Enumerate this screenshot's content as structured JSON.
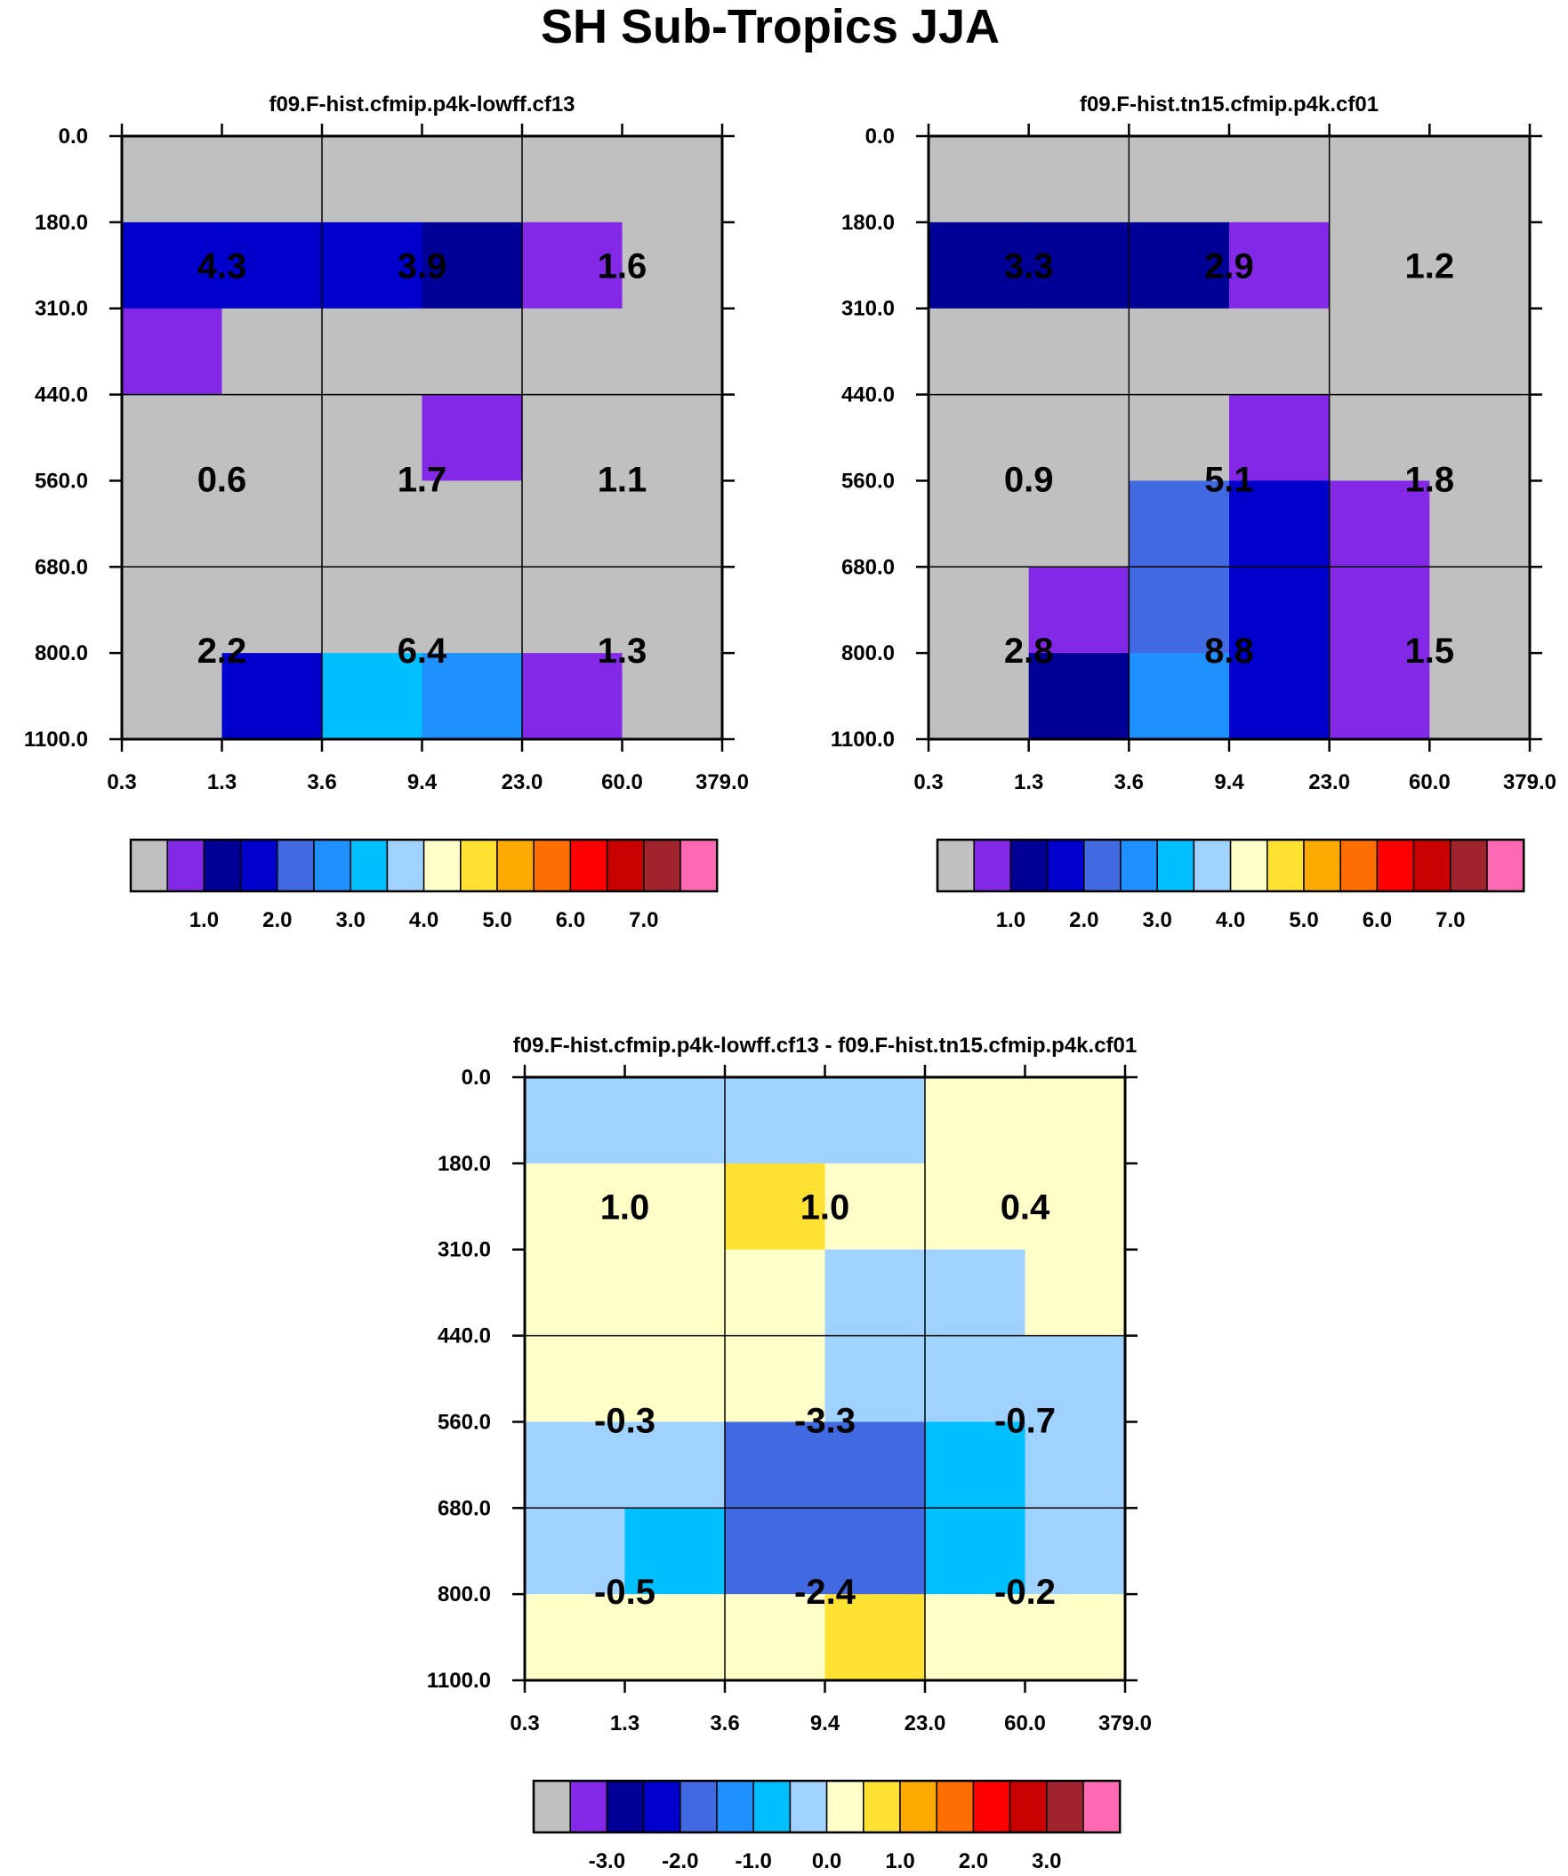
{
  "figure_title": "SH Sub-Tropics JJA",
  "chart_data": [
    {
      "type": "heatmap",
      "title": "f09.F-hist.cfmip.p4k-lowff.cf13",
      "x_tick_labels": [
        "0.3",
        "1.3",
        "3.6",
        "9.4",
        "23.0",
        "60.0",
        "379.0"
      ],
      "y_tick_labels": [
        "0.0",
        "180.0",
        "310.0",
        "440.0",
        "560.0",
        "680.0",
        "800.0",
        "1100.0"
      ],
      "cell_classes": [
        [
          0,
          0,
          0,
          0,
          0,
          0
        ],
        [
          3,
          3,
          3,
          2,
          1,
          0
        ],
        [
          1,
          0,
          0,
          0,
          0,
          0
        ],
        [
          0,
          0,
          0,
          1,
          0,
          0
        ],
        [
          0,
          0,
          0,
          0,
          0,
          0
        ],
        [
          0,
          0,
          0,
          0,
          0,
          0
        ],
        [
          0,
          3,
          6,
          5,
          1,
          0
        ]
      ],
      "summary_values": [
        [
          "4.3",
          "3.9",
          "1.6"
        ],
        [
          "0.6",
          "1.7",
          "1.1"
        ],
        [
          "2.2",
          "6.4",
          "1.3"
        ]
      ],
      "colorbar": {
        "colors": [
          "#c0c0c0",
          "#8228e6",
          "#000096",
          "#0000cd",
          "#4169e1",
          "#1e90ff",
          "#00bfff",
          "#a0d2ff",
          "#ffffc8",
          "#ffe132",
          "#ffaa00",
          "#ff6e00",
          "#ff0000",
          "#c80000",
          "#a0232d",
          "#ff69b4"
        ],
        "tick_labels": [
          "1.0",
          "2.0",
          "3.0",
          "4.0",
          "5.0",
          "6.0",
          "7.0"
        ]
      }
    },
    {
      "type": "heatmap",
      "title": "f09.F-hist.tn15.cfmip.p4k.cf01",
      "x_tick_labels": [
        "0.3",
        "1.3",
        "3.6",
        "9.4",
        "23.0",
        "60.0",
        "379.0"
      ],
      "y_tick_labels": [
        "0.0",
        "180.0",
        "310.0",
        "440.0",
        "560.0",
        "680.0",
        "800.0",
        "1100.0"
      ],
      "cell_classes": [
        [
          0,
          0,
          0,
          0,
          0,
          0
        ],
        [
          2,
          2,
          2,
          1,
          0,
          0
        ],
        [
          0,
          0,
          0,
          0,
          0,
          0
        ],
        [
          0,
          0,
          0,
          1,
          0,
          0
        ],
        [
          0,
          0,
          4,
          3,
          1,
          0
        ],
        [
          0,
          1,
          4,
          3,
          1,
          0
        ],
        [
          0,
          2,
          5,
          3,
          1,
          0
        ]
      ],
      "summary_values": [
        [
          "3.3",
          "2.9",
          "1.2"
        ],
        [
          "0.9",
          "5.1",
          "1.8"
        ],
        [
          "2.8",
          "8.8",
          "1.5"
        ]
      ],
      "colorbar": {
        "colors": [
          "#c0c0c0",
          "#8228e6",
          "#000096",
          "#0000cd",
          "#4169e1",
          "#1e90ff",
          "#00bfff",
          "#a0d2ff",
          "#ffffc8",
          "#ffe132",
          "#ffaa00",
          "#ff6e00",
          "#ff0000",
          "#c80000",
          "#a0232d",
          "#ff69b4"
        ],
        "tick_labels": [
          "1.0",
          "2.0",
          "3.0",
          "4.0",
          "5.0",
          "6.0",
          "7.0"
        ]
      }
    },
    {
      "type": "heatmap",
      "title": "f09.F-hist.cfmip.p4k-lowff.cf13 - f09.F-hist.tn15.cfmip.p4k.cf01",
      "x_tick_labels": [
        "0.3",
        "1.3",
        "3.6",
        "9.4",
        "23.0",
        "60.0",
        "379.0"
      ],
      "y_tick_labels": [
        "0.0",
        "180.0",
        "310.0",
        "440.0",
        "560.0",
        "680.0",
        "800.0",
        "1100.0"
      ],
      "cell_classes": [
        [
          7,
          7,
          7,
          7,
          8,
          8
        ],
        [
          8,
          8,
          9,
          8,
          8,
          8
        ],
        [
          8,
          8,
          8,
          7,
          7,
          8
        ],
        [
          8,
          8,
          8,
          7,
          7,
          7
        ],
        [
          7,
          7,
          4,
          4,
          6,
          7
        ],
        [
          7,
          6,
          4,
          4,
          6,
          7
        ],
        [
          8,
          8,
          8,
          9,
          8,
          8
        ]
      ],
      "summary_values": [
        [
          "1.0",
          "1.0",
          "0.4"
        ],
        [
          "-0.3",
          "-3.3",
          "-0.7"
        ],
        [
          "-0.5",
          "-2.4",
          "-0.2"
        ]
      ],
      "colorbar": {
        "colors": [
          "#c0c0c0",
          "#8228e6",
          "#000096",
          "#0000cd",
          "#4169e1",
          "#1e90ff",
          "#00bfff",
          "#a0d2ff",
          "#ffffc8",
          "#ffe132",
          "#ffaa00",
          "#ff6e00",
          "#ff0000",
          "#c80000",
          "#a0232d",
          "#ff69b4"
        ],
        "tick_labels": [
          "-3.0",
          "-2.0",
          "-1.0",
          "0.0",
          "1.0",
          "2.0",
          "3.0"
        ]
      }
    }
  ]
}
